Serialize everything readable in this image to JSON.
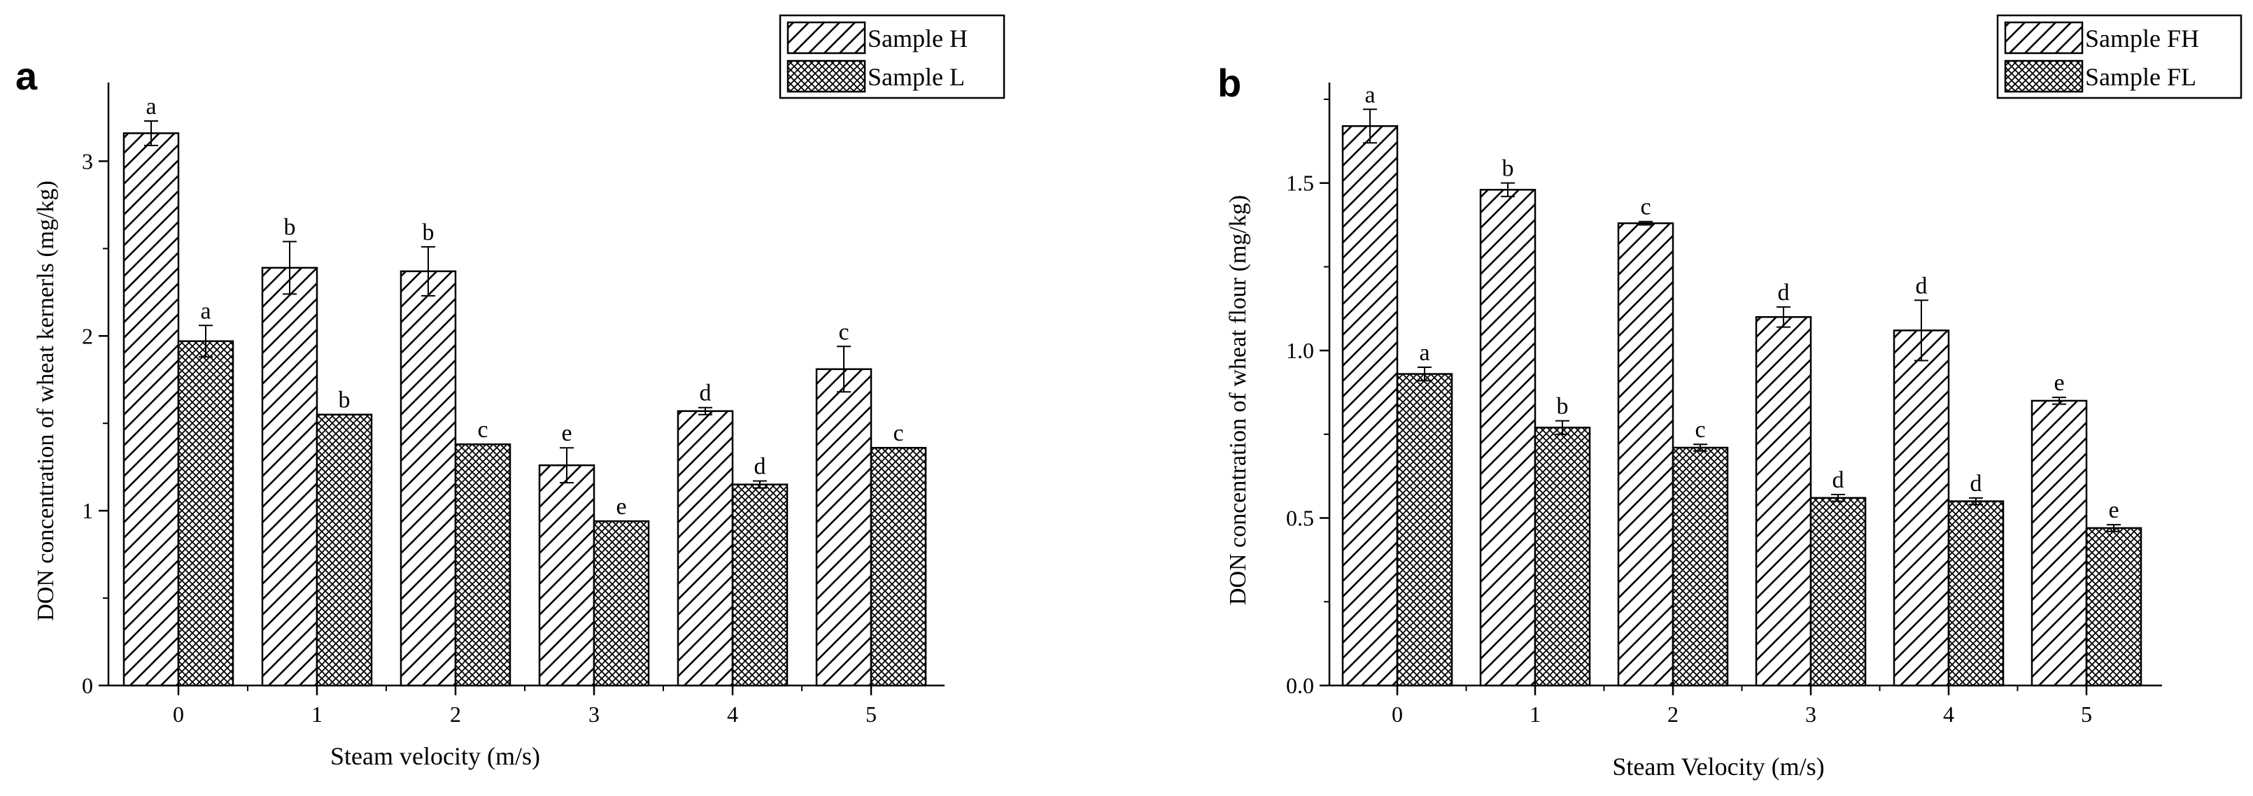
{
  "colors": {
    "axis": "#000000",
    "bar_fill": "#ffffff",
    "hatch": "#000000",
    "background": "#ffffff"
  },
  "chart_data": [
    {
      "panel": "a",
      "type": "bar",
      "title": "",
      "xlabel": "Steam velocity (m/s)",
      "ylabel": "DON concentration of wheat kernerls (mg/kg)",
      "categories": [
        "0",
        "1",
        "2",
        "3",
        "4",
        "5"
      ],
      "ylim": [
        0,
        3.45
      ],
      "yticks": [
        0,
        1,
        2,
        3
      ],
      "ytick_labels": [
        "0",
        "1",
        "2",
        "3"
      ],
      "legend_position": "top-right",
      "series": [
        {
          "name": "Sample H",
          "pattern": "diagonal",
          "values": [
            3.16,
            2.39,
            2.37,
            1.26,
            1.57,
            1.81
          ],
          "errors": [
            0.07,
            0.15,
            0.14,
            0.1,
            0.02,
            0.13
          ],
          "letters": [
            "a",
            "b",
            "b",
            "e",
            "d",
            "c"
          ]
        },
        {
          "name": "Sample L",
          "pattern": "crosshatch",
          "values": [
            1.97,
            1.55,
            1.38,
            0.94,
            1.15,
            1.36
          ],
          "errors": [
            0.09,
            0.0,
            0.0,
            0.0,
            0.02,
            0.0
          ],
          "letters": [
            "a",
            "b",
            "c",
            "e",
            "d",
            "c"
          ]
        }
      ]
    },
    {
      "panel": "b",
      "type": "bar",
      "title": "",
      "xlabel": "Steam Velocity (m/s)",
      "ylabel": "DON concentration of wheat flour (mg/kg)",
      "categories": [
        "0",
        "1",
        "2",
        "3",
        "4",
        "5"
      ],
      "ylim": [
        0,
        1.8
      ],
      "yticks": [
        0,
        0.5,
        1.0,
        1.5
      ],
      "ytick_labels": [
        "0.0",
        "0.5",
        "1.0",
        "1.5"
      ],
      "legend_position": "top-right",
      "series": [
        {
          "name": "Sample FH",
          "pattern": "diagonal",
          "values": [
            1.67,
            1.48,
            1.38,
            1.1,
            1.06,
            0.85
          ],
          "errors": [
            0.05,
            0.02,
            0.005,
            0.03,
            0.09,
            0.01
          ],
          "letters": [
            "a",
            "b",
            "c",
            "d",
            "d",
            "e"
          ]
        },
        {
          "name": "Sample FL",
          "pattern": "crosshatch",
          "values": [
            0.93,
            0.77,
            0.71,
            0.56,
            0.55,
            0.47
          ],
          "errors": [
            0.02,
            0.02,
            0.01,
            0.01,
            0.01,
            0.01
          ],
          "letters": [
            "a",
            "b",
            "c",
            "d",
            "d",
            "e"
          ]
        }
      ]
    }
  ]
}
